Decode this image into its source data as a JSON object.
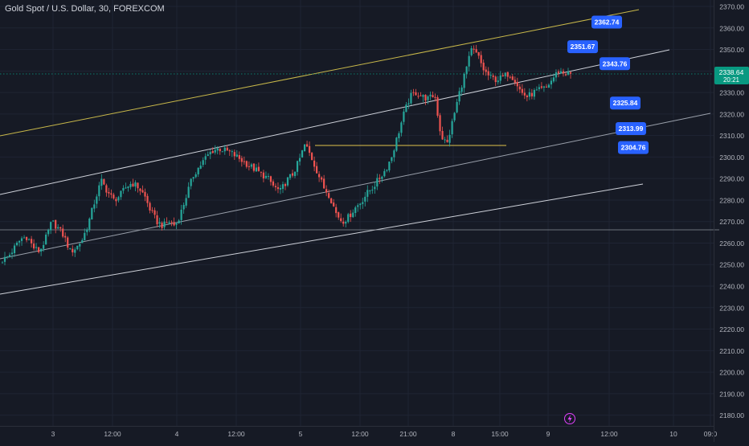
{
  "header": {
    "symbol_line": "Gold Spot / U.S. Dollar, 30, FOREXCOM"
  },
  "colors": {
    "background": "#161a25",
    "grid": "#1f2433",
    "up": "#26a69a",
    "down": "#ef5350",
    "channel_upper": "#c8b84a",
    "channel_line": "#cfd2da",
    "horizontal_level": "#e0c34a",
    "label_box": "#2962ff",
    "price_badge": "#089981",
    "axis_text": "#b2b5be"
  },
  "price_axis": {
    "ticks": [
      "2370.00",
      "2360.00",
      "2350.00",
      "2340.00",
      "2330.00",
      "2320.00",
      "2310.00",
      "2300.00",
      "2290.00",
      "2280.00",
      "2270.00",
      "2260.00",
      "2250.00",
      "2240.00",
      "2230.00",
      "2220.00",
      "2210.00",
      "2200.00",
      "2190.00",
      "2180.00"
    ],
    "current_price": "2338.64",
    "countdown": "20:21"
  },
  "time_axis": {
    "labels": [
      "3",
      "12:00",
      "4",
      "12:00",
      "5",
      "12:00",
      "21:00",
      "8",
      "15:00",
      "9",
      "12:00",
      "10",
      "09:0"
    ]
  },
  "annotations": [
    {
      "label": "2362.74",
      "price": 2362.74
    },
    {
      "label": "2351.67",
      "price": 2351.67
    },
    {
      "label": "2343.76",
      "price": 2343.76
    },
    {
      "label": "2325.84",
      "price": 2325.84
    },
    {
      "label": "2313.99",
      "price": 2313.99
    },
    {
      "label": "2304.76",
      "price": 2304.76
    }
  ],
  "chart_data": {
    "type": "candlestick",
    "title": "Gold Spot / U.S. Dollar, 30, FOREXCOM",
    "ylim": [
      2175,
      2373
    ],
    "y_ticks": [
      2370,
      2360,
      2350,
      2340,
      2330,
      2320,
      2310,
      2300,
      2290,
      2280,
      2270,
      2260,
      2250,
      2240,
      2230,
      2220,
      2210,
      2200,
      2190,
      2180
    ],
    "x_tick_labels": [
      "3",
      "12:00",
      "4",
      "12:00",
      "5",
      "12:00",
      "21:00",
      "8",
      "15:00",
      "9",
      "12:00",
      "10",
      "09:0"
    ],
    "close_path": [
      2252,
      2254,
      2258,
      2262,
      2263,
      2258,
      2256,
      2262,
      2270,
      2267,
      2263,
      2256,
      2258,
      2262,
      2270,
      2280,
      2289,
      2284,
      2280,
      2282,
      2286,
      2288,
      2286,
      2282,
      2275,
      2270,
      2268,
      2270,
      2268,
      2275,
      2284,
      2292,
      2296,
      2300,
      2303,
      2304,
      2303,
      2302,
      2300,
      2298,
      2296,
      2294,
      2292,
      2290,
      2286,
      2284,
      2289,
      2292,
      2298,
      2306,
      2300,
      2293,
      2286,
      2282,
      2274,
      2270,
      2272,
      2276,
      2279,
      2283,
      2286,
      2290,
      2294,
      2300,
      2310,
      2320,
      2328,
      2330,
      2328,
      2327,
      2329,
      2310,
      2306,
      2318,
      2330,
      2340,
      2350,
      2347,
      2340,
      2337,
      2336,
      2337,
      2339,
      2336,
      2330,
      2328,
      2330,
      2331,
      2332,
      2336,
      2340,
      2339,
      2338.64
    ],
    "latest_price": 2338.64
  }
}
